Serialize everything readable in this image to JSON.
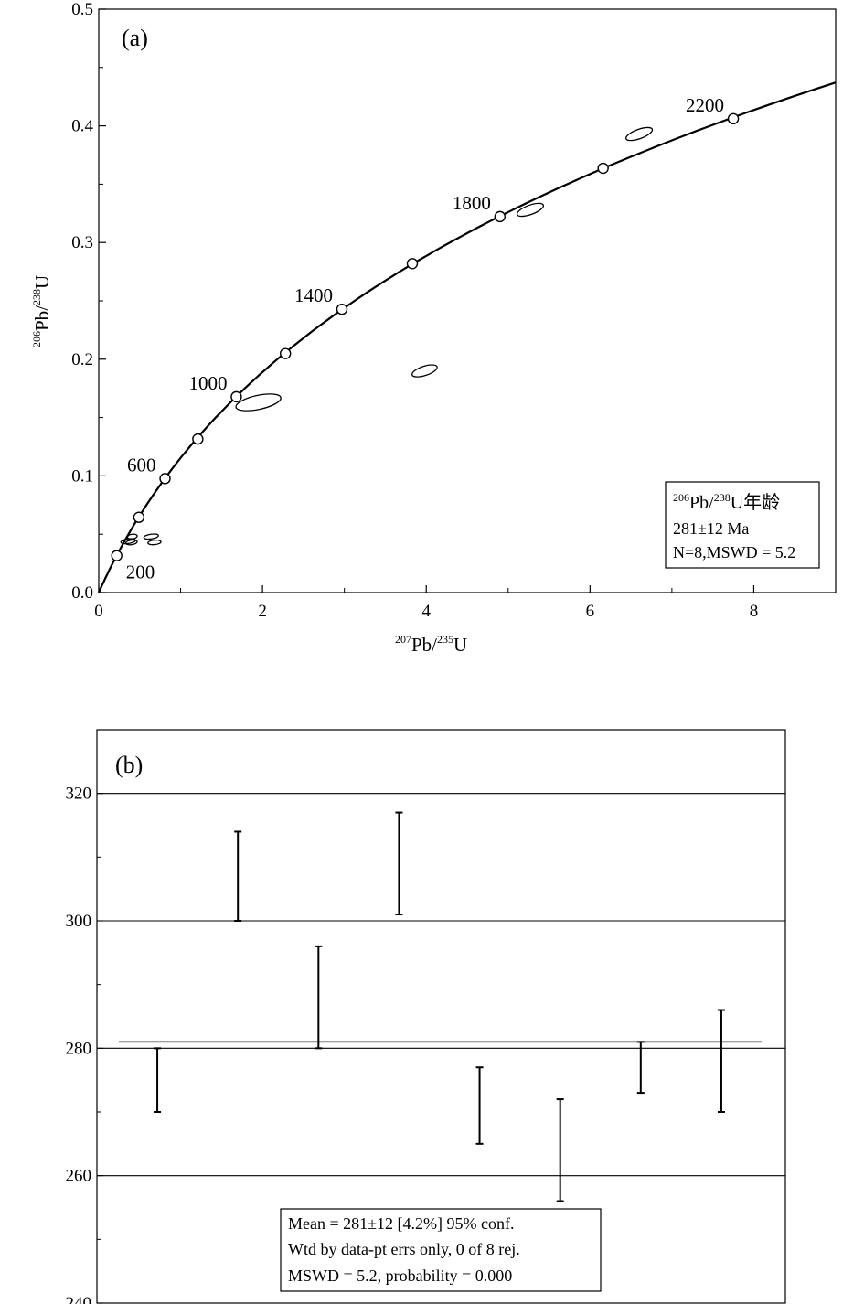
{
  "chart_data": [
    {
      "type": "scatter",
      "panel_label": "(a)",
      "xlabel": {
        "sup": "207",
        "main": "Pb/",
        "sup2": "235",
        "main2": "U"
      },
      "ylabel": {
        "sup": "206",
        "main": "Pb/",
        "sup2": "238",
        "main2": "U"
      },
      "xlim": [
        0,
        9
      ],
      "ylim": [
        0,
        0.5
      ],
      "xticks": [
        0,
        2,
        4,
        6,
        8
      ],
      "xtick_labels": [
        "0",
        "2",
        "4",
        "6",
        "8"
      ],
      "yticks": [
        0,
        0.1,
        0.2,
        0.3,
        0.4,
        0.5
      ],
      "ytick_labels": [
        "0.0",
        "0.1",
        "0.2",
        "0.3",
        "0.4",
        "0.5"
      ],
      "concordia_markers": [
        {
          "x": 0.22,
          "y": 0.0316
        },
        {
          "x": 0.49,
          "y": 0.0645
        },
        {
          "x": 0.81,
          "y": 0.0977
        },
        {
          "x": 1.21,
          "y": 0.1316
        },
        {
          "x": 1.68,
          "y": 0.1678
        },
        {
          "x": 2.28,
          "y": 0.2048
        },
        {
          "x": 2.97,
          "y": 0.2428
        },
        {
          "x": 3.83,
          "y": 0.2819
        },
        {
          "x": 4.9,
          "y": 0.3222
        },
        {
          "x": 6.16,
          "y": 0.3636
        },
        {
          "x": 7.75,
          "y": 0.4061
        }
      ],
      "age_labels": [
        {
          "text": "200",
          "x": 0.22,
          "y": 0.0316
        },
        {
          "text": "600",
          "x": 0.81,
          "y": 0.0977
        },
        {
          "text": "1000",
          "x": 1.68,
          "y": 0.1678
        },
        {
          "text": "1400",
          "x": 2.97,
          "y": 0.2428
        },
        {
          "text": "1800",
          "x": 4.9,
          "y": 0.3222
        },
        {
          "text": "2200",
          "x": 7.75,
          "y": 0.4061
        }
      ],
      "ellipses": [
        {
          "x": 0.36,
          "y": 0.044,
          "rx": 0.09,
          "ry": 0.002,
          "angle": -8
        },
        {
          "x": 0.4,
          "y": 0.043,
          "rx": 0.07,
          "ry": 0.002,
          "angle": -8
        },
        {
          "x": 0.41,
          "y": 0.048,
          "rx": 0.06,
          "ry": 0.002,
          "angle": -8
        },
        {
          "x": 0.64,
          "y": 0.048,
          "rx": 0.09,
          "ry": 0.002,
          "angle": -8
        },
        {
          "x": 0.68,
          "y": 0.043,
          "rx": 0.08,
          "ry": 0.0015,
          "angle": -5
        },
        {
          "x": 1.95,
          "y": 0.163,
          "rx": 0.28,
          "ry": 0.006,
          "angle": -12
        },
        {
          "x": 3.98,
          "y": 0.19,
          "rx": 0.16,
          "ry": 0.004,
          "angle": -18
        },
        {
          "x": 5.27,
          "y": 0.328,
          "rx": 0.17,
          "ry": 0.004,
          "angle": -20
        },
        {
          "x": 6.6,
          "y": 0.393,
          "rx": 0.17,
          "ry": 0.004,
          "angle": -20
        }
      ],
      "legend": {
        "line1_sup": "206",
        "line1_a": "Pb/",
        "line1_sup2": "238",
        "line1_b": "U年龄",
        "line2": "281±12 Ma",
        "line3": "N=8,MSWD = 5.2"
      }
    },
    {
      "type": "errorbar",
      "panel_label": "(b)",
      "ylim": [
        240,
        330
      ],
      "yticks": [
        240,
        260,
        280,
        300,
        320
      ],
      "ytick_labels": [
        "240",
        "260",
        "280",
        "300",
        "320"
      ],
      "minor_yticks": [
        250,
        270,
        290,
        310
      ],
      "mean": 281,
      "points": [
        {
          "low": 270,
          "high": 280
        },
        {
          "low": 300,
          "high": 314
        },
        {
          "low": 280,
          "high": 296
        },
        {
          "low": 301,
          "high": 317
        },
        {
          "low": 265,
          "high": 277
        },
        {
          "low": 256,
          "high": 272
        },
        {
          "low": 273,
          "high": 281
        },
        {
          "low": 270,
          "high": 286
        }
      ],
      "stats": {
        "line1": "Mean = 281±12  [4.2%]  95% conf.",
        "line2": "Wtd by data-pt errs only, 0 of 8 rej.",
        "line3": "MSWD = 5.2, probability = 0.000"
      }
    }
  ]
}
